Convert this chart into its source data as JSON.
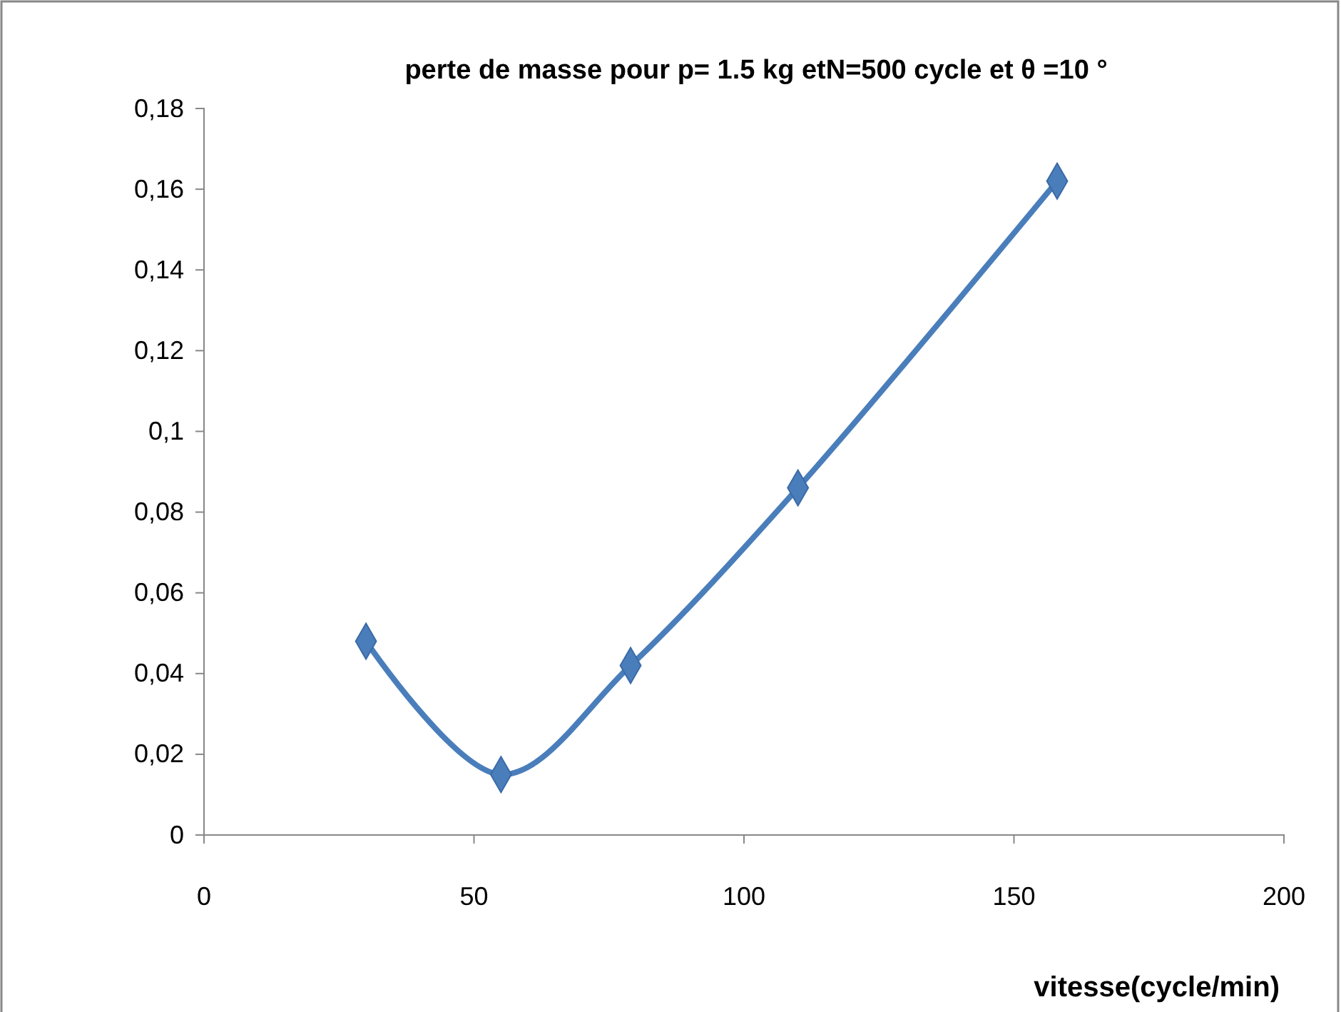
{
  "chart_data": {
    "type": "line",
    "title": "perte de masse pour p= 1.5 kg etN=500 cycle et θ =10 °",
    "xlabel": "vitesse(cycle/min)",
    "x": [
      30,
      55,
      79,
      110,
      158
    ],
    "series": [
      {
        "color": "#4a7ebb",
        "values": [
          0.048,
          0.015,
          0.042,
          0.086,
          0.162
        ]
      }
    ],
    "xlim": [
      0,
      200
    ],
    "xticks": [
      0,
      50,
      100,
      150,
      200
    ],
    "ylim": [
      0,
      0.18
    ],
    "yticks": [
      {
        "value": 0,
        "label": "0"
      },
      {
        "value": 0.02,
        "label": "0,02"
      },
      {
        "value": 0.04,
        "label": "0,04"
      },
      {
        "value": 0.06,
        "label": "0,06"
      },
      {
        "value": 0.08,
        "label": "0,08"
      },
      {
        "value": 0.1,
        "label": "0,1"
      },
      {
        "value": 0.12,
        "label": "0,12"
      },
      {
        "value": 0.14,
        "label": "0,14"
      },
      {
        "value": 0.16,
        "label": "0,16"
      },
      {
        "value": 0.18,
        "label": "0,18"
      }
    ],
    "grid": false,
    "marker": "diamond",
    "line_style": "solid"
  }
}
